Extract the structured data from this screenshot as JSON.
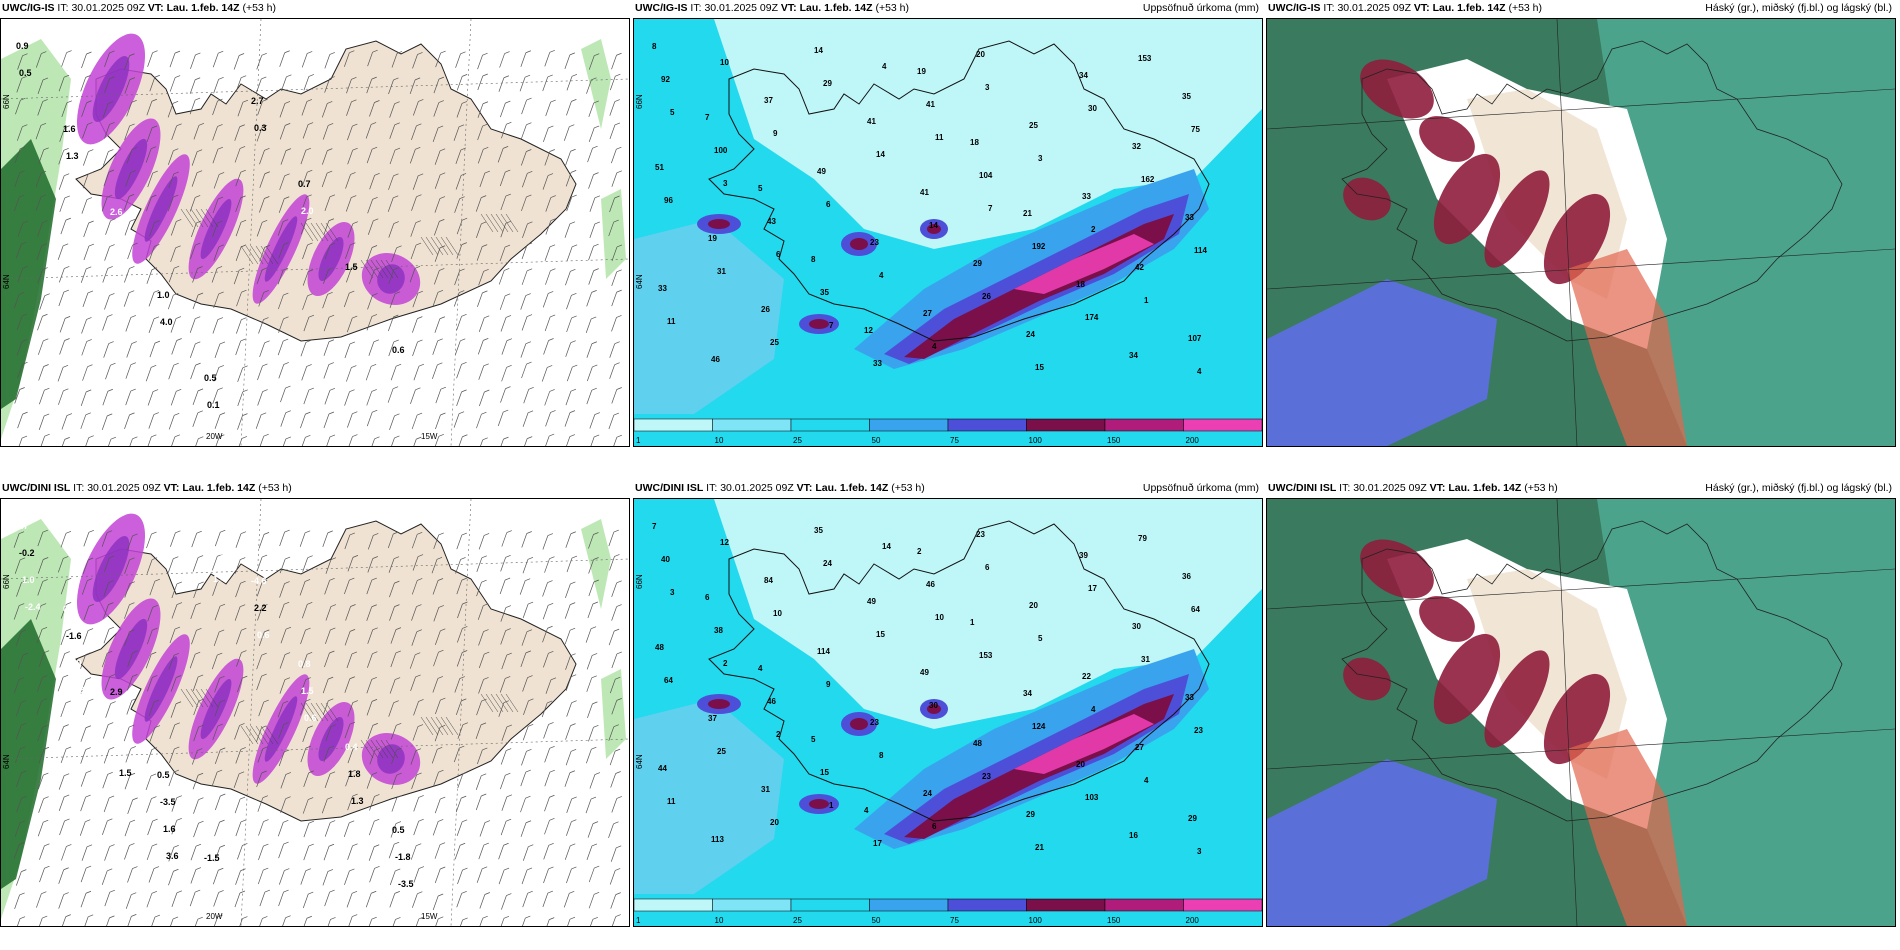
{
  "colors": {
    "land": "#efe2d2",
    "sea_green": "#bde8b5",
    "green_dark": "#1f6b2a",
    "magenta": "#c243d6",
    "violet": "#8b2fc1",
    "cyan_light": "#bff6f8",
    "cyan": "#22d9ee",
    "blue": "#3aa3ee",
    "royal": "#4d4fd8",
    "maroon": "#7a0f4a",
    "pink": "#ec3fb3",
    "cloud_green": "#3a7a5e",
    "cloud_teal": "#4aa38a",
    "cloud_blue": "#5a6fd8",
    "cloud_red": "#8f1d3c"
  },
  "panels": [
    {
      "id": "p1",
      "header_model": "UWC/IG-IS",
      "header_it_label": "IT:",
      "header_it": "30.01.2025 09Z",
      "header_vt_label": "VT:",
      "header_vt": "Lau. 1.feb. 14Z",
      "header_lead": "(+53 h)",
      "header_right": "",
      "kind": "wind",
      "lon_labels": [
        "20W",
        "15W"
      ],
      "lat_labels": [
        "66N",
        "64N"
      ],
      "labels": [
        "0.9",
        "1.6",
        "2.6",
        "1.0",
        "0.5",
        "2.7",
        "0.7",
        "1.5",
        "0.6",
        "0.5",
        "1.3",
        "2.6",
        "4.0",
        "0.1",
        "0.3",
        "2.0"
      ]
    },
    {
      "id": "p2",
      "header_model": "UWC/IG-IS",
      "header_it_label": "IT:",
      "header_it": "30.01.2025 09Z",
      "header_vt_label": "VT:",
      "header_vt": "Lau. 1.feb. 14Z",
      "header_lead": "(+53 h)",
      "header_right": "Uppsöfnuð úrkoma (mm)",
      "kind": "precip",
      "lat_labels": [
        "66N",
        "64N"
      ],
      "labels": [
        "8",
        "7",
        "5",
        "8",
        "12",
        "19",
        "18",
        "21",
        "18",
        "34",
        "35",
        "51",
        "19",
        "26",
        "14",
        "41",
        "41",
        "29",
        "24",
        "34",
        "32",
        "33",
        "33",
        "46",
        "37",
        "49",
        "23",
        "27",
        "20",
        "25",
        "33",
        "42",
        "107",
        "92",
        "100",
        "43",
        "35",
        "33",
        "41",
        "104",
        "192",
        "174",
        "153",
        "75",
        "96",
        "31",
        "25",
        "29",
        "14",
        "14",
        "26",
        "15",
        "30",
        "162",
        "114",
        "11",
        "10",
        "9",
        "6",
        "4",
        "4",
        "3",
        "3",
        "2",
        "1",
        "4",
        "5",
        "3",
        "6",
        "7",
        "4",
        "11",
        "7"
      ],
      "colorbar": [
        "1",
        "10",
        "25",
        "50",
        "75",
        "100",
        "150",
        "200",
        "400"
      ]
    },
    {
      "id": "p3",
      "header_model": "UWC/IG-IS",
      "header_it_label": "IT:",
      "header_it": "30.01.2025 09Z",
      "header_vt_label": "VT:",
      "header_vt": "Lau. 1.feb. 14Z",
      "header_lead": "(+53 h)",
      "header_right": "Háský (gr.), miðský (fj.bl.) og lágský (bl.)",
      "kind": "cloud"
    },
    {
      "id": "p4",
      "header_model": "UWC/DINI ISL",
      "header_it_label": "IT:",
      "header_it": "30.01.2025 09Z",
      "header_vt_label": "VT:",
      "header_vt": "Lau. 1.feb. 14Z",
      "header_lead": "(+53 h)",
      "header_right": "",
      "kind": "wind",
      "lon_labels": [
        "20W",
        "15W"
      ],
      "lat_labels": [
        "66N",
        "64N"
      ],
      "labels": [
        "0.7",
        "0.6",
        "2.9",
        "0.5",
        "-1.5",
        "-4.6",
        "0.8",
        "0.4",
        "0.5",
        "-0.2",
        "-1.6",
        "-1.0",
        "-3.5",
        "2.4",
        "2.2",
        "1.5",
        "1.8",
        "-1.8",
        "1.0",
        "2.9",
        "-1.4",
        "1.6",
        "2.4",
        "0.6",
        "0.6",
        "1.3",
        "-3.5",
        "-2.4",
        "1.8",
        "1.5",
        "3.6",
        "1.4"
      ]
    },
    {
      "id": "p5",
      "header_model": "UWC/DINI ISL",
      "header_it_label": "IT:",
      "header_it": "30.01.2025 09Z",
      "header_vt_label": "VT:",
      "header_vt": "Lau. 1.feb. 14Z",
      "header_lead": "(+53 h)",
      "header_right": "Uppsöfnuð úrkoma (mm)",
      "kind": "precip",
      "lat_labels": [
        "66N",
        "64N"
      ],
      "labels": [
        "7",
        "6",
        "4",
        "5",
        "4",
        "2",
        "1",
        "34",
        "20",
        "16",
        "36",
        "48",
        "37",
        "31",
        "35",
        "49",
        "49",
        "48",
        "29",
        "39",
        "30",
        "33",
        "44",
        "113",
        "84",
        "114",
        "23",
        "24",
        "23",
        "20",
        "22",
        "27",
        "29",
        "40",
        "38",
        "46",
        "15",
        "17",
        "46",
        "153",
        "124",
        "103",
        "79",
        "64",
        "64",
        "25",
        "20",
        "24",
        "15",
        "30",
        "23",
        "21",
        "17",
        "31",
        "23",
        "11",
        "12",
        "10",
        "9",
        "8",
        "6",
        "6",
        "5",
        "4",
        "4",
        "3",
        "3",
        "2",
        "2",
        "1",
        "14",
        "10"
      ],
      "colorbar": [
        "1",
        "10",
        "25",
        "50",
        "75",
        "100",
        "150",
        "200",
        "400"
      ]
    },
    {
      "id": "p6",
      "header_model": "UWC/DINI ISL",
      "header_it_label": "IT:",
      "header_it": "30.01.2025 09Z",
      "header_vt_label": "VT:",
      "header_vt": "Lau. 1.feb. 14Z",
      "header_lead": "(+53 h)",
      "header_right": "Háský (gr.), miðský (fj.bl.) og lágský (bl.)",
      "kind": "cloud"
    }
  ]
}
